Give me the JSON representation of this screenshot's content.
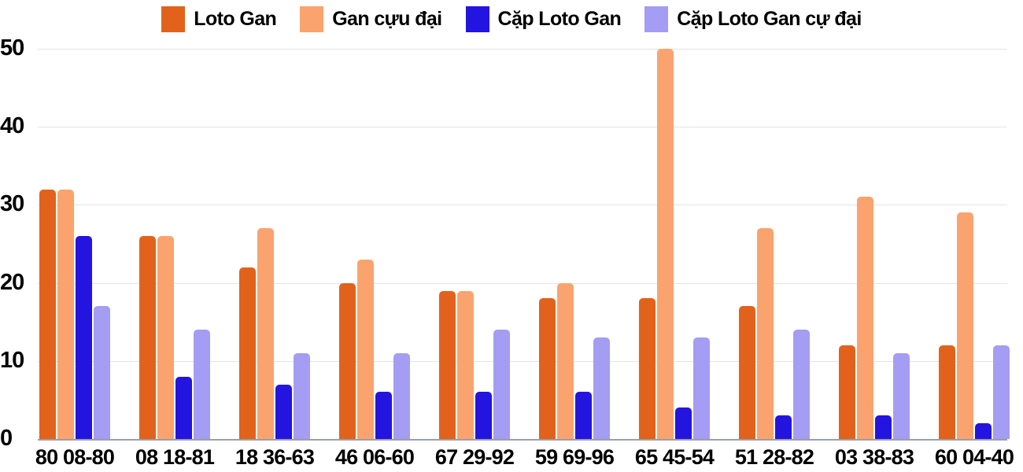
{
  "chart_data": {
    "type": "bar",
    "title": "",
    "xlabel": "",
    "ylabel": "",
    "categories": [
      "80 08-80",
      "08 18-81",
      "18 36-63",
      "46 06-60",
      "67 29-92",
      "59 69-96",
      "65 45-54",
      "51 28-82",
      "03 38-83",
      "60 04-40"
    ],
    "series": [
      {
        "name": "Loto Gan",
        "color": "#e2621c",
        "values": [
          32,
          26,
          22,
          20,
          19,
          18,
          18,
          17,
          12,
          12
        ]
      },
      {
        "name": "Gan cựu đại",
        "color": "#fba36e",
        "values": [
          32,
          26,
          27,
          23,
          19,
          20,
          50,
          27,
          31,
          29
        ]
      },
      {
        "name": "Cặp Loto Gan",
        "color": "#2414e0",
        "values": [
          26,
          8,
          7,
          6,
          6,
          6,
          4,
          3,
          3,
          2
        ]
      },
      {
        "name": "Cặp Loto Gan cự đại",
        "color": "#a59cf4",
        "values": [
          17,
          14,
          11,
          11,
          14,
          13,
          13,
          14,
          11,
          12
        ]
      }
    ],
    "ylim": [
      0,
      50
    ],
    "yticks": [
      0,
      10,
      20,
      30,
      40,
      50
    ],
    "grid": true,
    "legend_position": "top"
  },
  "colors": {
    "background": "#ffffff",
    "gridline": "#e3e3e3",
    "axis_line": "#9aa0a6",
    "text": "#000000"
  }
}
